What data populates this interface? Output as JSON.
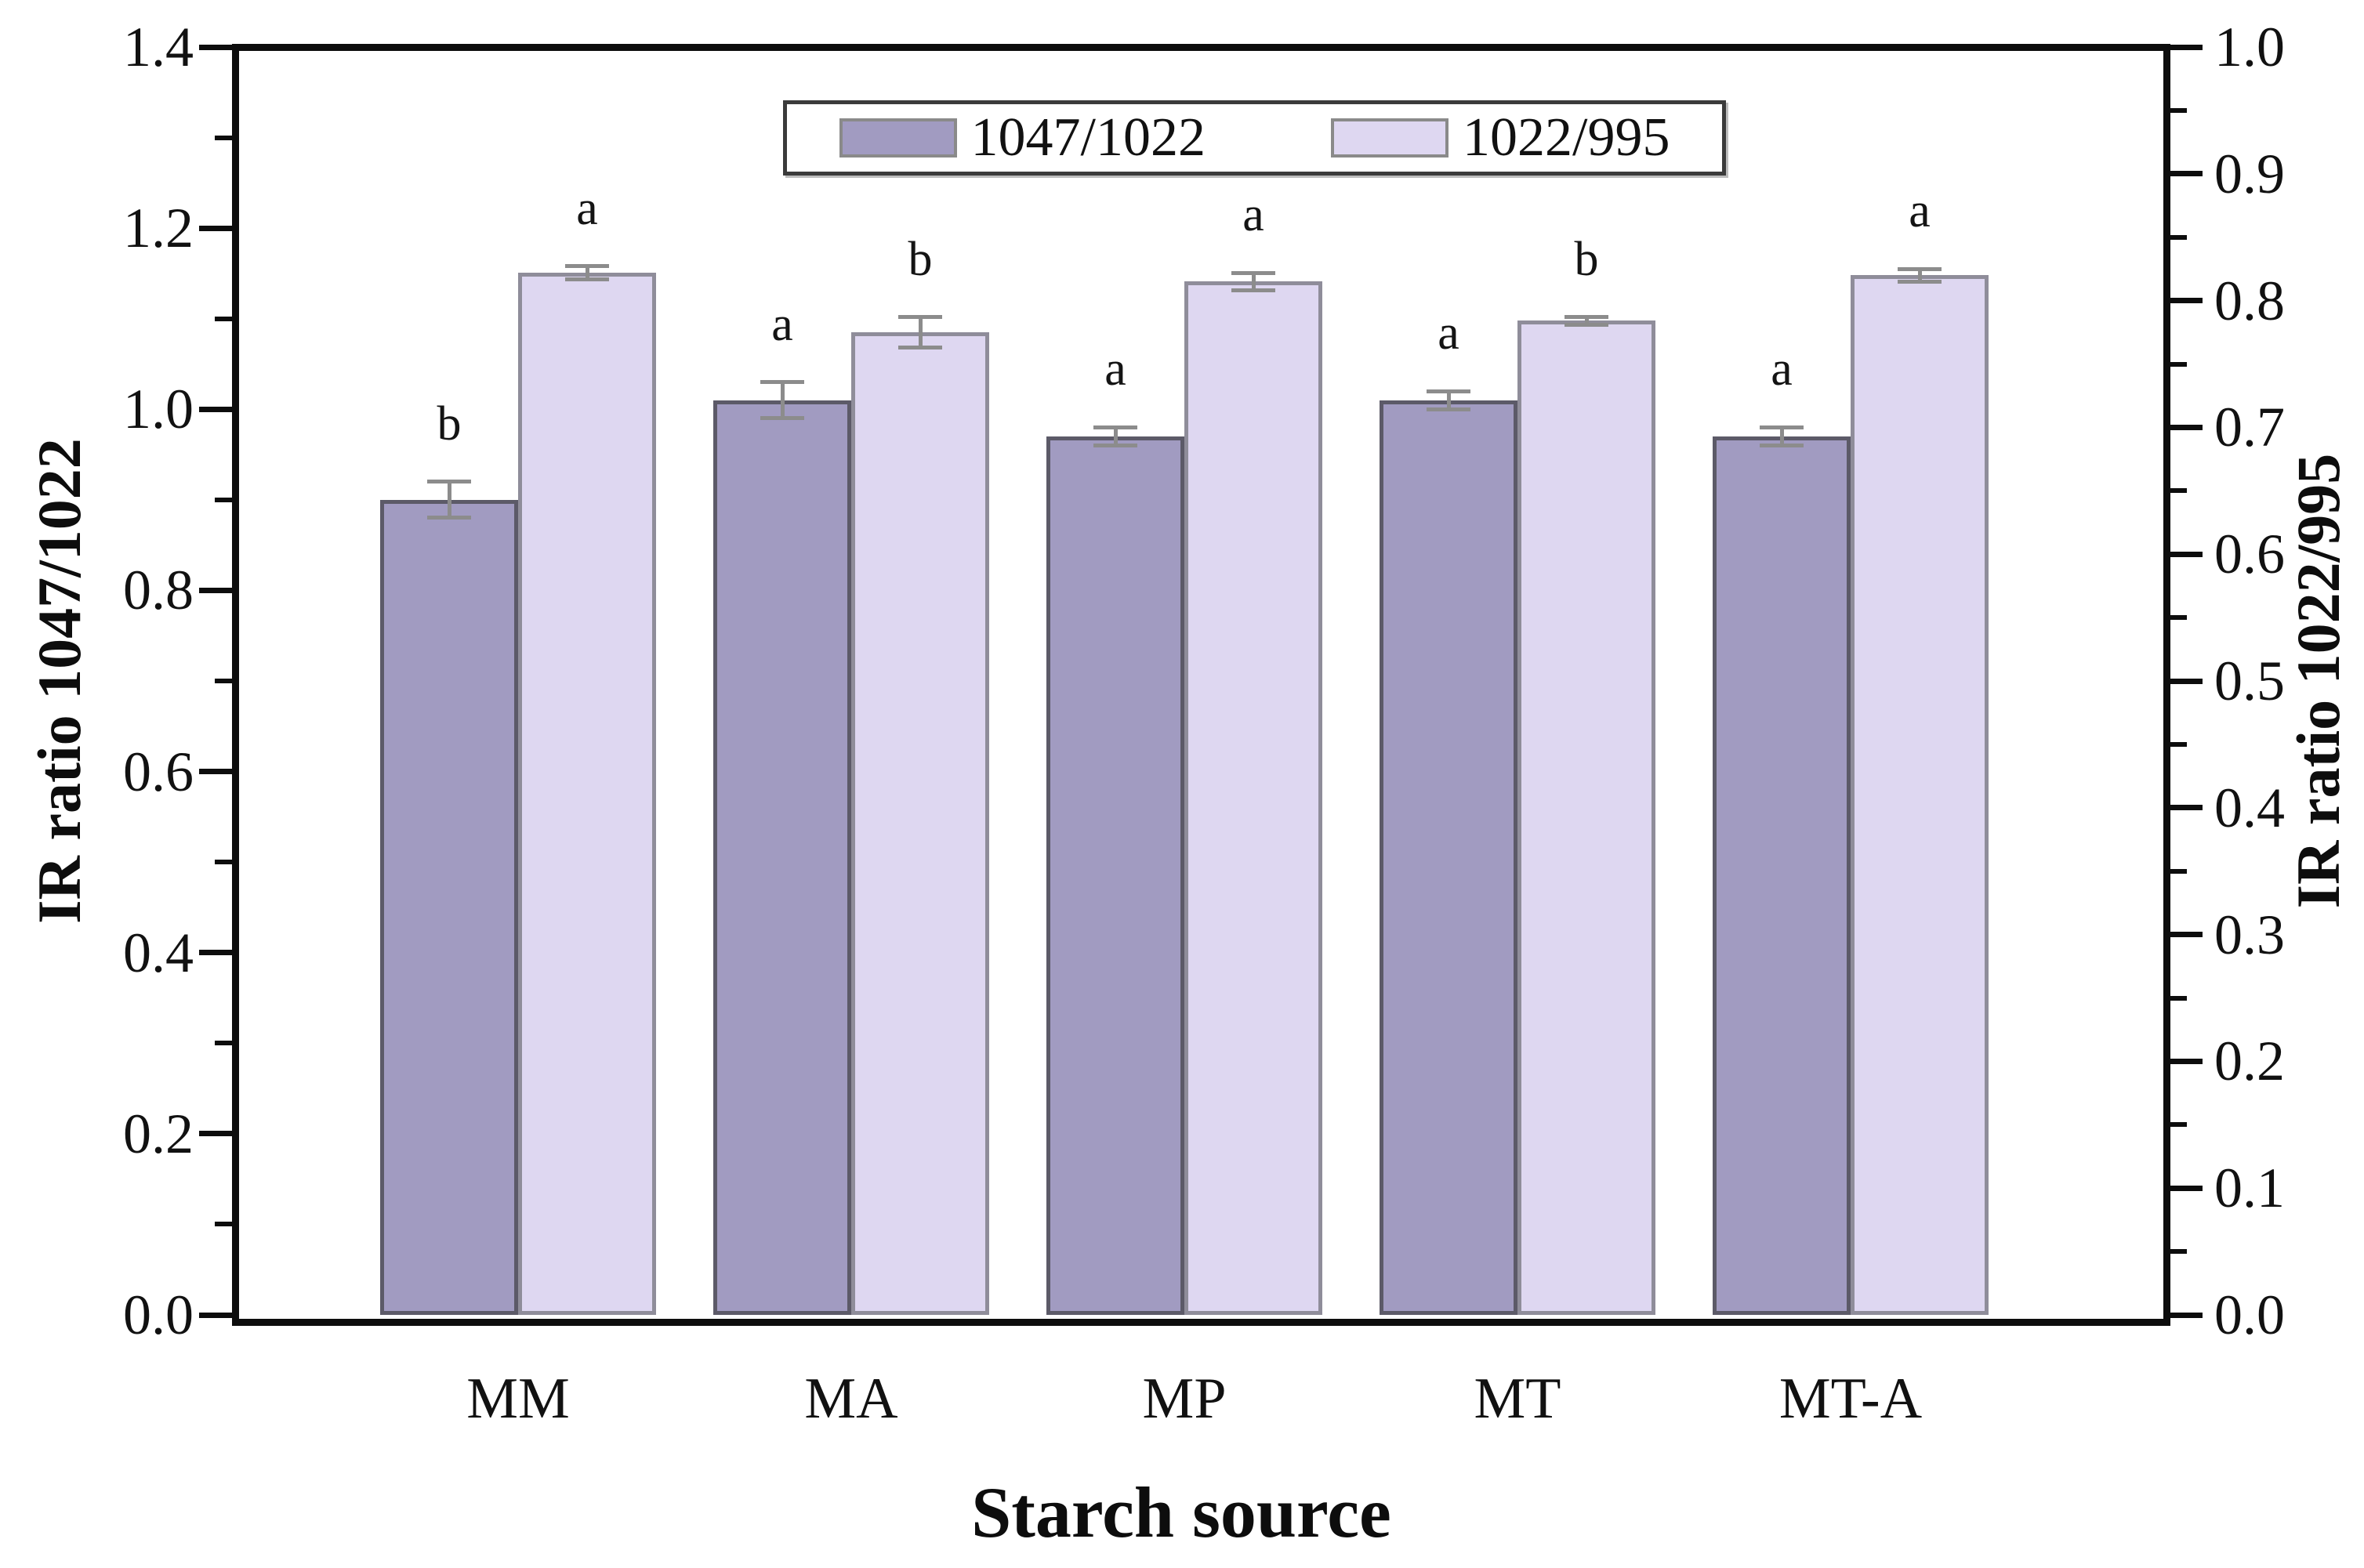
{
  "chart_data": {
    "type": "bar",
    "title": "",
    "xlabel": "Starch source",
    "ylabel_left": "IR ratio 1047/1022",
    "ylabel_right": "IR ratio 1022/995",
    "categories": [
      "MM",
      "MA",
      "MP",
      "MT",
      "MT-A"
    ],
    "series": [
      {
        "name": "1047/1022",
        "axis": "left",
        "color": "#a19bc1",
        "border_color": "#5c5a68",
        "values": [
          0.9,
          1.01,
          0.97,
          1.01,
          0.97
        ],
        "errors": [
          0.02,
          0.02,
          0.01,
          0.01,
          0.01
        ],
        "letters": [
          "b",
          "a",
          "a",
          "a",
          "a"
        ]
      },
      {
        "name": "1022/995",
        "axis": "right",
        "color": "#ded7f1",
        "border_color": "#8f8d9a",
        "values": [
          0.822,
          0.775,
          0.815,
          0.784,
          0.82
        ],
        "errors": [
          0.005,
          0.012,
          0.007,
          0.003,
          0.005
        ],
        "letters": [
          "a",
          "b",
          "a",
          "b",
          "a"
        ]
      }
    ],
    "left_axis": {
      "min": 0.0,
      "max": 1.4,
      "major_step": 0.2,
      "minor_step": 0.1,
      "ticks": [
        "0.0",
        "0.2",
        "0.4",
        "0.6",
        "0.8",
        "1.0",
        "1.2",
        "1.4"
      ]
    },
    "right_axis": {
      "min": 0.0,
      "max": 1.0,
      "major_step": 0.1,
      "minor_step": 0.05,
      "ticks": [
        "0.0",
        "0.1",
        "0.2",
        "0.3",
        "0.4",
        "0.5",
        "0.6",
        "0.7",
        "0.8",
        "0.9",
        "1.0"
      ]
    },
    "legend_position": "top-center-inside",
    "grid": false,
    "error_bar_color": "#8c8c8c",
    "frame_color": "#0d0d0d",
    "background": "#ffffff"
  }
}
